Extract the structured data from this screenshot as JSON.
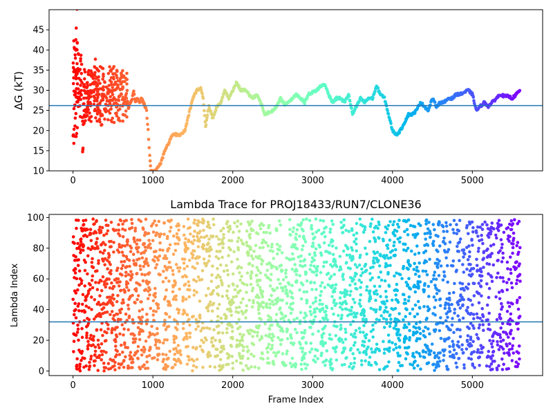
{
  "chart_data": [
    {
      "type": "scatter",
      "title": "",
      "xlabel": "",
      "ylabel": "ΔG (kT)",
      "xlim": [
        -300,
        5880
      ],
      "ylim": [
        10,
        50
      ],
      "xticks": [
        0,
        1000,
        2000,
        3000,
        4000,
        5000
      ],
      "yticks": [
        10,
        15,
        20,
        25,
        30,
        35,
        40,
        45
      ],
      "reference_line": 26.2,
      "colormap": "rainbow (frame index mapped: early = red, late = violet)",
      "grid": false,
      "trace_points": [
        [
          0,
          20
        ],
        [
          10,
          17
        ],
        [
          15,
          40
        ],
        [
          20,
          30
        ],
        [
          25,
          22
        ],
        [
          30,
          38
        ],
        [
          40,
          45
        ],
        [
          45,
          18
        ],
        [
          50,
          49.5
        ],
        [
          55,
          33
        ],
        [
          60,
          26
        ],
        [
          70,
          36
        ],
        [
          80,
          28
        ],
        [
          90,
          24
        ],
        [
          100,
          38
        ],
        [
          110,
          32
        ],
        [
          120,
          14
        ],
        [
          125,
          16
        ],
        [
          130,
          27
        ],
        [
          140,
          29
        ],
        [
          150,
          34
        ],
        [
          160,
          24
        ],
        [
          170,
          31
        ],
        [
          180,
          28
        ],
        [
          200,
          30
        ],
        [
          220,
          26
        ],
        [
          240,
          33
        ],
        [
          260,
          29
        ],
        [
          280,
          37
        ],
        [
          300,
          27
        ],
        [
          320,
          31
        ],
        [
          340,
          25
        ],
        [
          360,
          21
        ],
        [
          380,
          30
        ],
        [
          400,
          24
        ],
        [
          420,
          28
        ],
        [
          450,
          31
        ],
        [
          480,
          26
        ],
        [
          500,
          35
        ],
        [
          520,
          28
        ],
        [
          550,
          27
        ],
        [
          580,
          30
        ],
        [
          600,
          33
        ],
        [
          620,
          27
        ],
        [
          650,
          26
        ],
        [
          700,
          26
        ],
        [
          740,
          28
        ],
        [
          760,
          30
        ],
        [
          780,
          27
        ],
        [
          800,
          28
        ],
        [
          830,
          27
        ],
        [
          860,
          28
        ],
        [
          900,
          26
        ],
        [
          920,
          25
        ],
        [
          940,
          20
        ],
        [
          960,
          14
        ],
        [
          975,
          10
        ],
        [
          1000,
          9.8
        ],
        [
          1050,
          10.5
        ],
        [
          1100,
          12
        ],
        [
          1150,
          15
        ],
        [
          1200,
          17
        ],
        [
          1250,
          19
        ],
        [
          1300,
          19
        ],
        [
          1350,
          19
        ],
        [
          1400,
          20
        ],
        [
          1450,
          24
        ],
        [
          1500,
          28
        ],
        [
          1550,
          30
        ],
        [
          1600,
          30.5
        ],
        [
          1630,
          28
        ],
        [
          1660,
          21
        ],
        [
          1700,
          26
        ],
        [
          1750,
          23
        ],
        [
          1800,
          26
        ],
        [
          1850,
          27
        ],
        [
          1900,
          30
        ],
        [
          1950,
          28
        ],
        [
          2000,
          30
        ],
        [
          2050,
          32
        ],
        [
          2100,
          30
        ],
        [
          2150,
          30
        ],
        [
          2200,
          29
        ],
        [
          2250,
          28
        ],
        [
          2300,
          29
        ],
        [
          2350,
          27
        ],
        [
          2400,
          24
        ],
        [
          2450,
          24.5
        ],
        [
          2500,
          25
        ],
        [
          2550,
          26
        ],
        [
          2600,
          28
        ],
        [
          2650,
          26.5
        ],
        [
          2700,
          27
        ],
        [
          2750,
          28
        ],
        [
          2800,
          29
        ],
        [
          2850,
          28
        ],
        [
          2900,
          27
        ],
        [
          2950,
          29
        ],
        [
          3000,
          29.5
        ],
        [
          3050,
          30
        ],
        [
          3100,
          31
        ],
        [
          3150,
          31.5
        ],
        [
          3200,
          29
        ],
        [
          3250,
          27
        ],
        [
          3300,
          28
        ],
        [
          3350,
          28
        ],
        [
          3400,
          27
        ],
        [
          3450,
          29
        ],
        [
          3500,
          24
        ],
        [
          3550,
          26
        ],
        [
          3600,
          28
        ],
        [
          3650,
          27
        ],
        [
          3700,
          28
        ],
        [
          3750,
          28
        ],
        [
          3800,
          31
        ],
        [
          3850,
          29
        ],
        [
          3900,
          28
        ],
        [
          3950,
          24
        ],
        [
          4000,
          20
        ],
        [
          4050,
          19
        ],
        [
          4100,
          20
        ],
        [
          4150,
          22
        ],
        [
          4200,
          24
        ],
        [
          4250,
          24
        ],
        [
          4300,
          25
        ],
        [
          4350,
          27
        ],
        [
          4400,
          26
        ],
        [
          4450,
          25
        ],
        [
          4500,
          28
        ],
        [
          4550,
          26
        ],
        [
          4600,
          27
        ],
        [
          4650,
          27
        ],
        [
          4700,
          28
        ],
        [
          4750,
          28
        ],
        [
          4800,
          29
        ],
        [
          4850,
          29
        ],
        [
          4900,
          29.5
        ],
        [
          4950,
          30
        ],
        [
          5000,
          29
        ],
        [
          5050,
          25
        ],
        [
          5100,
          26
        ],
        [
          5150,
          27
        ],
        [
          5200,
          26
        ],
        [
          5250,
          27
        ],
        [
          5300,
          28
        ],
        [
          5350,
          29
        ],
        [
          5400,
          28.5
        ],
        [
          5450,
          28.5
        ],
        [
          5500,
          28
        ],
        [
          5550,
          29
        ],
        [
          5600,
          30
        ]
      ]
    },
    {
      "type": "scatter",
      "title": "Lambda Trace for PROJ18433/RUN7/CLONE36",
      "xlabel": "Frame Index",
      "ylabel": "Lambda Index",
      "xlim": [
        -300,
        5880
      ],
      "ylim": [
        -3,
        102
      ],
      "xticks": [
        0,
        1000,
        2000,
        3000,
        4000,
        5000
      ],
      "yticks": [
        0,
        20,
        40,
        60,
        80,
        100
      ],
      "reference_line": 32,
      "colormap": "rainbow (frame index mapped: early = red, late = violet)",
      "grid": false,
      "frame_range": [
        0,
        5600
      ],
      "lambda_range": [
        0,
        99
      ]
    }
  ],
  "colors": {
    "reference_line": "#1f77b4",
    "axis": "#000000",
    "background": "#ffffff"
  }
}
